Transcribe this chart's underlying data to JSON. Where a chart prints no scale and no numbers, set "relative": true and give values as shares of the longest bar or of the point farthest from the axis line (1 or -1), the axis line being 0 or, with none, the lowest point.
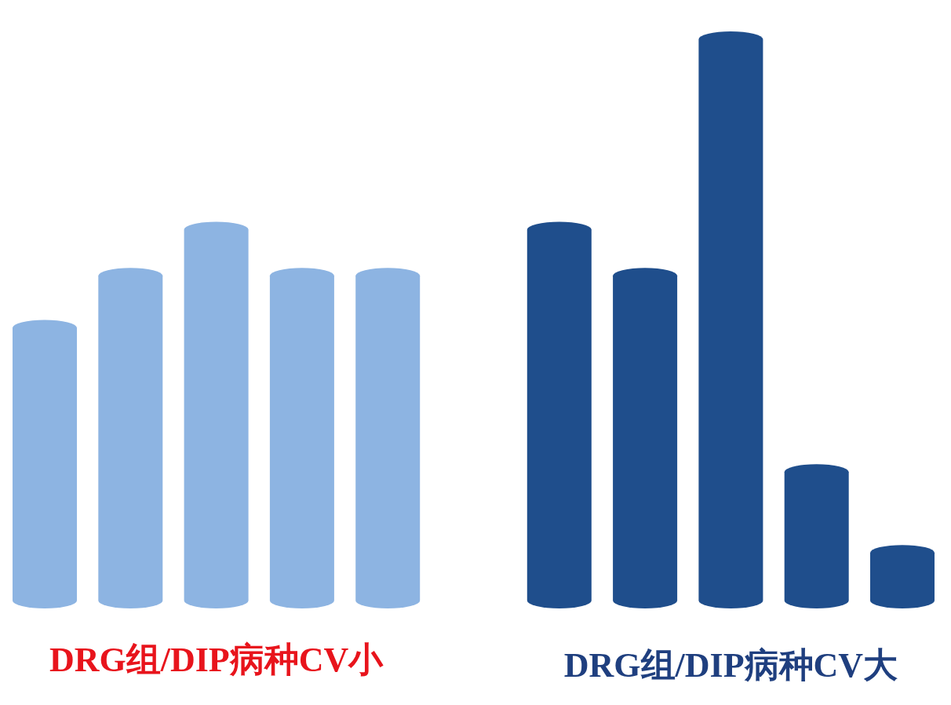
{
  "chart_data": {
    "type": "bar",
    "relative": true,
    "categories": [
      null,
      null,
      null,
      null,
      null,
      null,
      null,
      null,
      null,
      null
    ],
    "values": [
      0.5,
      0.59,
      0.67,
      0.59,
      0.59,
      0.67,
      0.59,
      1,
      0.25,
      0.11
    ],
    "colors": [
      "#8db4e2",
      "#8db4e2",
      "#8db4e2",
      "#8db4e2",
      "#8db4e2",
      "#1f4e8c",
      "#1f4e8c",
      "#1f4e8c",
      "#1f4e8c",
      "#1f4e8c"
    ],
    "annotations": [
      "DRG组/DIP病种CV小",
      "DRG组/DIP病种CV大"
    ],
    "grid": false
  }
}
